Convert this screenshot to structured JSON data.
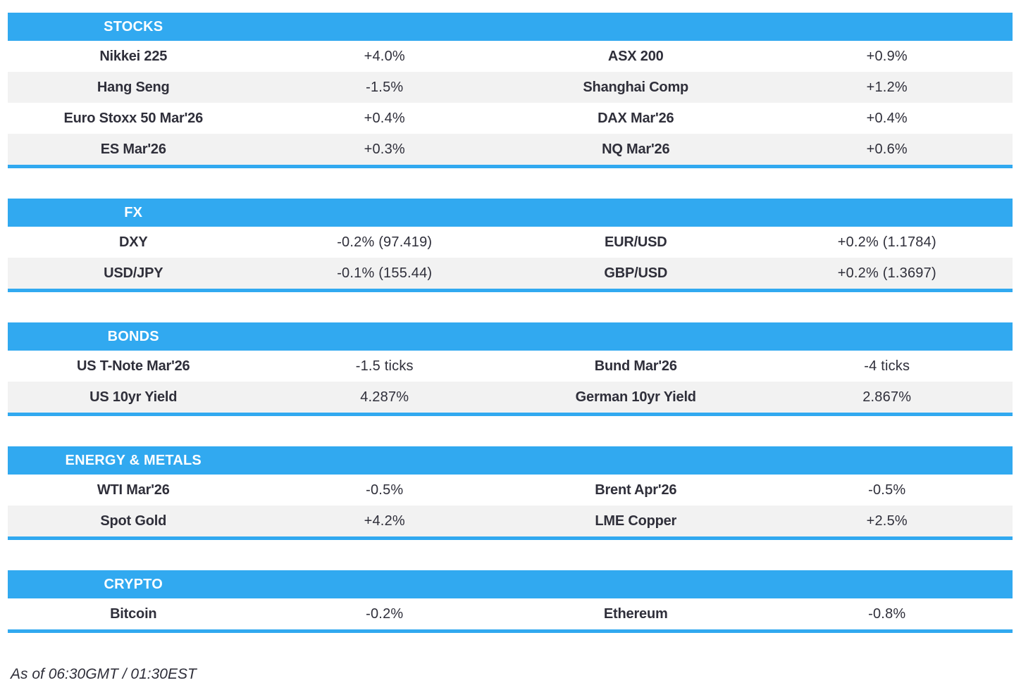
{
  "colors": {
    "accent": "#31A9F0",
    "row-alt": "#F2F2F2",
    "ink": "#2F2F3A"
  },
  "sections": [
    {
      "title": "STOCKS",
      "rows": [
        [
          "Nikkei 225",
          "+4.0%",
          "ASX 200",
          "+0.9%"
        ],
        [
          "Hang Seng",
          "-1.5%",
          "Shanghai Comp",
          "+1.2%"
        ],
        [
          "Euro Stoxx 50 Mar'26",
          "+0.4%",
          "DAX Mar'26",
          "+0.4%"
        ],
        [
          "ES Mar'26",
          "+0.3%",
          "NQ Mar'26",
          "+0.6%"
        ]
      ]
    },
    {
      "title": "FX",
      "rows": [
        [
          "DXY",
          "-0.2% (97.419)",
          "EUR/USD",
          "+0.2% (1.1784)"
        ],
        [
          "USD/JPY",
          "-0.1% (155.44)",
          "GBP/USD",
          "+0.2% (1.3697)"
        ]
      ]
    },
    {
      "title": "BONDS",
      "rows": [
        [
          "US T-Note Mar'26",
          "-1.5 ticks",
          "Bund Mar'26",
          "-4 ticks"
        ],
        [
          "US 10yr Yield",
          "4.287%",
          "German 10yr Yield",
          "2.867%"
        ]
      ]
    },
    {
      "title": "ENERGY & METALS",
      "rows": [
        [
          "WTI Mar'26",
          "-0.5%",
          "Brent Apr'26",
          "-0.5%"
        ],
        [
          "Spot Gold",
          "+4.2%",
          "LME Copper",
          "+2.5%"
        ]
      ]
    },
    {
      "title": "CRYPTO",
      "rows": [
        [
          "Bitcoin",
          "-0.2%",
          "Ethereum",
          "-0.8%"
        ]
      ]
    }
  ],
  "footer": {
    "as_of": "As of 06:30GMT / 01:30EST"
  }
}
